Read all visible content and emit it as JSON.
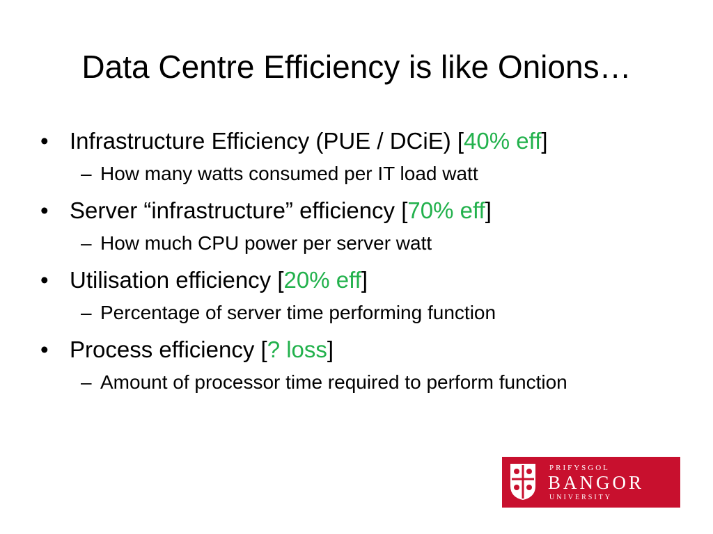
{
  "title": "Data Centre Efficiency is like Onions…",
  "bullets": [
    {
      "text": "Infrastructure Efficiency (PUE / DCiE) [",
      "highlight": "40% eff",
      "suffix": "]",
      "sub": "How many watts consumed per IT load watt"
    },
    {
      "text": "Server “infrastructure” efficiency [",
      "highlight": "70% eff",
      "suffix": "]",
      "sub": "How much CPU power per server watt"
    },
    {
      "text": "Utilisation efficiency [",
      "highlight": "20% eff",
      "suffix": "]",
      "sub": "Percentage of server time performing function"
    },
    {
      "text": "Process efficiency [",
      "highlight": "? loss",
      "suffix": "]",
      "sub": "Amount of processor time required to perform function"
    }
  ],
  "bullet_glyph": "•",
  "sub_glyph": "–",
  "logo": {
    "line1": "PRIFYSGOL",
    "line2": "BANGOR",
    "line3": "UNIVERSITY"
  },
  "colors": {
    "highlight": "#22b14c",
    "logo_bg": "#c8102e"
  }
}
